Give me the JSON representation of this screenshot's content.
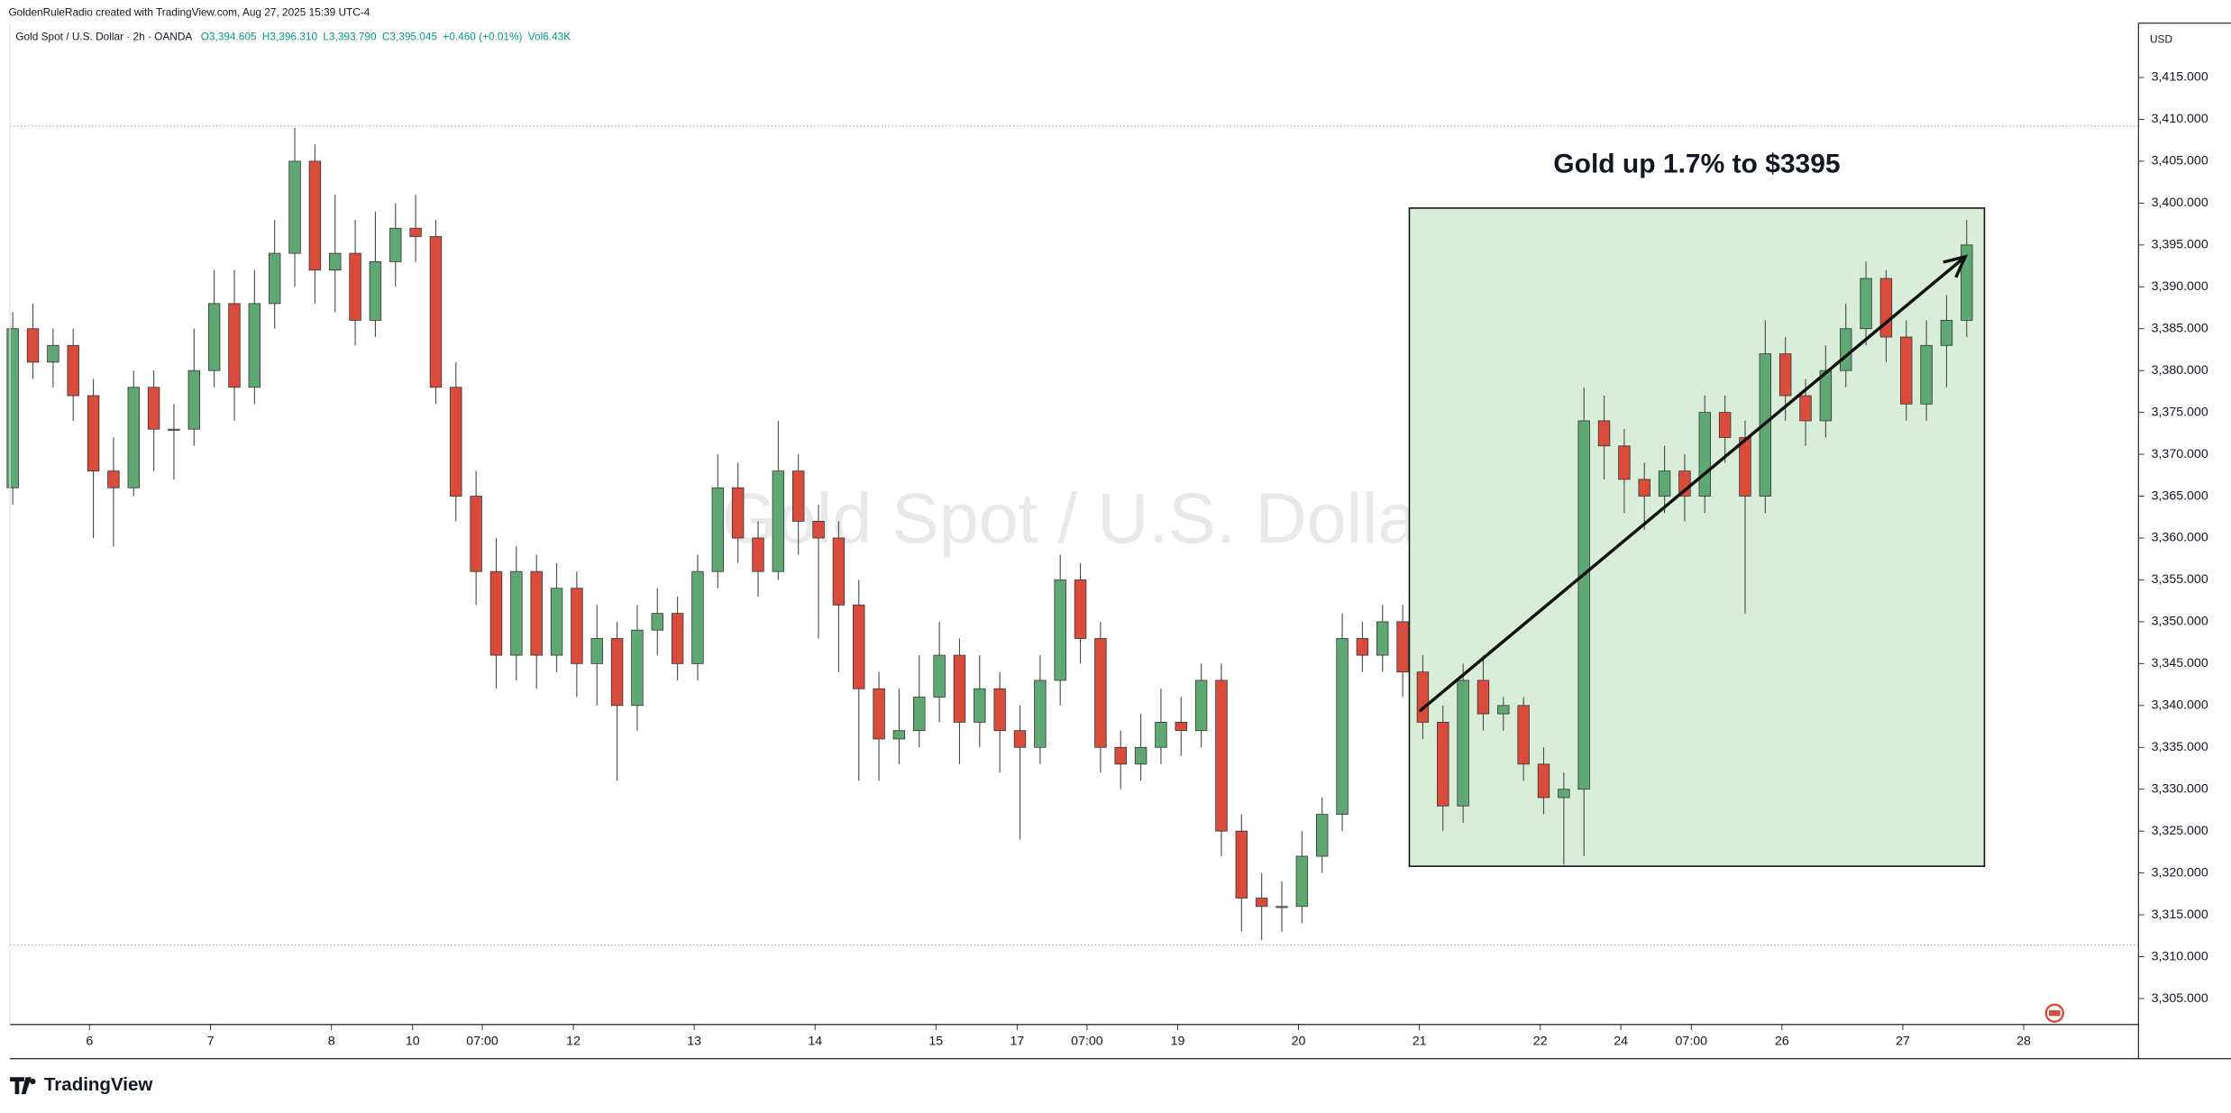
{
  "chart_data": {
    "type": "candlestick",
    "header": "GoldenRuleRadio created with TradingView.com, Aug 27, 2025 15:39 UTC-4",
    "symbol": "Gold Spot / U.S. Dollar · 2h · OANDA",
    "readout": [
      "O3,394.605",
      "H3,396.310",
      "L3,393.790",
      "C3,395.045",
      "+0.460 (+0.01%)",
      "Vol6.43K"
    ],
    "watermark": "Gold Spot / U.S. Dollar",
    "currency": "USD",
    "brand": "TradingView",
    "annotation": {
      "text": "Gold up 1.7% to $3395",
      "box_x": [
        69.4,
        97.95
      ],
      "box_y": [
        3320.8,
        3399.4
      ],
      "arrow_x": [
        69.9,
        97
      ],
      "arrow_y": [
        3339.3,
        3393.6
      ]
    },
    "high_low_lines": [
      3409.2,
      3311.4
    ],
    "up_color": "#5fa873",
    "down_color": "#d94b3b",
    "ylim": [
      3301.9,
      3421.5
    ],
    "yticks": [
      {
        "value": 3305,
        "label": "3,305.000"
      },
      {
        "value": 3310,
        "label": "3,310.000"
      },
      {
        "value": 3315,
        "label": "3,315.000"
      },
      {
        "value": 3320,
        "label": "3,320.000"
      },
      {
        "value": 3325,
        "label": "3,325.000"
      },
      {
        "value": 3330,
        "label": "3,330.000"
      },
      {
        "value": 3335,
        "label": "3,335.000"
      },
      {
        "value": 3340,
        "label": "3,340.000"
      },
      {
        "value": 3345,
        "label": "3,345.000"
      },
      {
        "value": 3350,
        "label": "3,350.000"
      },
      {
        "value": 3355,
        "label": "3,355.000"
      },
      {
        "value": 3360,
        "label": "3,360.000"
      },
      {
        "value": 3365,
        "label": "3,365.000"
      },
      {
        "value": 3370,
        "label": "3,370.000"
      },
      {
        "value": 3375,
        "label": "3,375.000"
      },
      {
        "value": 3380,
        "label": "3,380.000"
      },
      {
        "value": 3385,
        "label": "3,385.000"
      },
      {
        "value": 3390,
        "label": "3,390.000"
      },
      {
        "value": 3395,
        "label": "3,395.000"
      },
      {
        "value": 3400,
        "label": "3,400.000"
      },
      {
        "value": 3405,
        "label": "3,405.000"
      },
      {
        "value": 3410,
        "label": "3,410.000"
      },
      {
        "value": 3415,
        "label": "3,415.000"
      }
    ],
    "xlim": [
      -0.07,
      105.6
    ],
    "xticks": [
      {
        "value": 3.88,
        "label": "6"
      },
      {
        "value": 9.89,
        "label": "7"
      },
      {
        "value": 15.89,
        "label": "8"
      },
      {
        "value": 19.92,
        "label": "10"
      },
      {
        "value": 23.38,
        "label": "07:00"
      },
      {
        "value": 27.9,
        "label": "12"
      },
      {
        "value": 33.9,
        "label": "13"
      },
      {
        "value": 39.9,
        "label": "14"
      },
      {
        "value": 45.9,
        "label": "15"
      },
      {
        "value": 49.93,
        "label": "17"
      },
      {
        "value": 53.4,
        "label": "07:00"
      },
      {
        "value": 57.9,
        "label": "19"
      },
      {
        "value": 63.9,
        "label": "20"
      },
      {
        "value": 69.9,
        "label": "21"
      },
      {
        "value": 75.9,
        "label": "22"
      },
      {
        "value": 79.9,
        "label": "24"
      },
      {
        "value": 83.4,
        "label": "07:00"
      },
      {
        "value": 87.9,
        "label": "26"
      },
      {
        "value": 93.9,
        "label": "27"
      },
      {
        "value": 99.9,
        "label": "28"
      }
    ],
    "ohlc": [
      [
        3366,
        3387,
        3364,
        3385
      ],
      [
        3385,
        3388,
        3379,
        3381
      ],
      [
        3381,
        3385,
        3378,
        3383
      ],
      [
        3383,
        3385,
        3374,
        3377
      ],
      [
        3377,
        3379,
        3360,
        3368
      ],
      [
        3368,
        3372,
        3359,
        3366
      ],
      [
        3366,
        3380,
        3365,
        3378
      ],
      [
        3378,
        3380,
        3368,
        3373
      ],
      [
        3373,
        3376,
        3367,
        3373
      ],
      [
        3373,
        3385,
        3371,
        3380
      ],
      [
        3380,
        3392,
        3378,
        3388
      ],
      [
        3388,
        3392,
        3374,
        3378
      ],
      [
        3378,
        3392,
        3376,
        3388
      ],
      [
        3388,
        3398,
        3385,
        3394
      ],
      [
        3394,
        3409,
        3390,
        3405
      ],
      [
        3405,
        3407,
        3388,
        3392
      ],
      [
        3392,
        3401,
        3387,
        3394
      ],
      [
        3394,
        3398,
        3383,
        3386
      ],
      [
        3386,
        3399,
        3384,
        3393
      ],
      [
        3393,
        3400,
        3390,
        3397
      ],
      [
        3397,
        3401,
        3393,
        3396
      ],
      [
        3396,
        3398,
        3376,
        3378
      ],
      [
        3378,
        3381,
        3362,
        3365
      ],
      [
        3365,
        3368,
        3352,
        3356
      ],
      [
        3356,
        3360,
        3342,
        3346
      ],
      [
        3346,
        3359,
        3343,
        3356
      ],
      [
        3356,
        3358,
        3342,
        3346
      ],
      [
        3346,
        3357,
        3344,
        3354
      ],
      [
        3354,
        3356,
        3341,
        3345
      ],
      [
        3345,
        3352,
        3340,
        3348
      ],
      [
        3348,
        3350,
        3331,
        3340
      ],
      [
        3340,
        3352,
        3337,
        3349
      ],
      [
        3349,
        3354,
        3346,
        3351
      ],
      [
        3351,
        3353,
        3343,
        3345
      ],
      [
        3345,
        3358,
        3343,
        3356
      ],
      [
        3356,
        3370,
        3354,
        3366
      ],
      [
        3366,
        3369,
        3357,
        3360
      ],
      [
        3360,
        3362,
        3353,
        3356
      ],
      [
        3356,
        3374,
        3355,
        3368
      ],
      [
        3368,
        3370,
        3358,
        3362
      ],
      [
        3362,
        3364,
        3348,
        3360
      ],
      [
        3360,
        3362,
        3344,
        3352
      ],
      [
        3352,
        3355,
        3331,
        3342
      ],
      [
        3342,
        3344,
        3331,
        3336
      ],
      [
        3336,
        3342,
        3333,
        3337
      ],
      [
        3337,
        3346,
        3335,
        3341
      ],
      [
        3341,
        3350,
        3338,
        3346
      ],
      [
        3346,
        3348,
        3333,
        3338
      ],
      [
        3338,
        3346,
        3335,
        3342
      ],
      [
        3342,
        3344,
        3332,
        3337
      ],
      [
        3337,
        3340,
        3324,
        3335
      ],
      [
        3335,
        3346,
        3333,
        3343
      ],
      [
        3343,
        3358,
        3340,
        3355
      ],
      [
        3355,
        3357,
        3345,
        3348
      ],
      [
        3348,
        3350,
        3332,
        3335
      ],
      [
        3335,
        3337,
        3330,
        3333
      ],
      [
        3333,
        3339,
        3331,
        3335
      ],
      [
        3335,
        3342,
        3333,
        3338
      ],
      [
        3338,
        3341,
        3334,
        3337
      ],
      [
        3337,
        3345,
        3335,
        3343
      ],
      [
        3343,
        3345,
        3322,
        3325
      ],
      [
        3325,
        3327,
        3313,
        3317
      ],
      [
        3317,
        3320,
        3312,
        3316
      ],
      [
        3316,
        3319,
        3313,
        3316
      ],
      [
        3316,
        3325,
        3314,
        3322
      ],
      [
        3322,
        3329,
        3320,
        3327
      ],
      [
        3327,
        3351,
        3325,
        3348
      ],
      [
        3348,
        3350,
        3344,
        3346
      ],
      [
        3346,
        3352,
        3344,
        3350
      ],
      [
        3350,
        3352,
        3341,
        3344
      ],
      [
        3344,
        3346,
        3336,
        3338
      ],
      [
        3338,
        3340,
        3325,
        3328
      ],
      [
        3328,
        3345,
        3326,
        3343
      ],
      [
        3343,
        3346,
        3337,
        3339
      ],
      [
        3339,
        3341,
        3337,
        3340
      ],
      [
        3340,
        3341,
        3331,
        3333
      ],
      [
        3333,
        3335,
        3327,
        3329
      ],
      [
        3329,
        3332,
        3321,
        3330
      ],
      [
        3330,
        3378,
        3322,
        3374
      ],
      [
        3374,
        3377,
        3367,
        3371
      ],
      [
        3371,
        3373,
        3363,
        3367
      ],
      [
        3367,
        3369,
        3361,
        3365
      ],
      [
        3365,
        3371,
        3363,
        3368
      ],
      [
        3368,
        3370,
        3362,
        3365
      ],
      [
        3365,
        3377,
        3363,
        3375
      ],
      [
        3375,
        3377,
        3369,
        3372
      ],
      [
        3372,
        3374,
        3351,
        3365
      ],
      [
        3365,
        3386,
        3363,
        3382
      ],
      [
        3382,
        3384,
        3374,
        3377
      ],
      [
        3377,
        3379,
        3371,
        3374
      ],
      [
        3374,
        3383,
        3372,
        3380
      ],
      [
        3380,
        3388,
        3378,
        3385
      ],
      [
        3385,
        3393,
        3383,
        3391
      ],
      [
        3391,
        3392,
        3381,
        3384
      ],
      [
        3384,
        3386,
        3374,
        3376
      ],
      [
        3376,
        3386,
        3374,
        3383
      ],
      [
        3383,
        3389,
        3378,
        3386
      ],
      [
        3386,
        3398,
        3384,
        3395
      ]
    ]
  }
}
